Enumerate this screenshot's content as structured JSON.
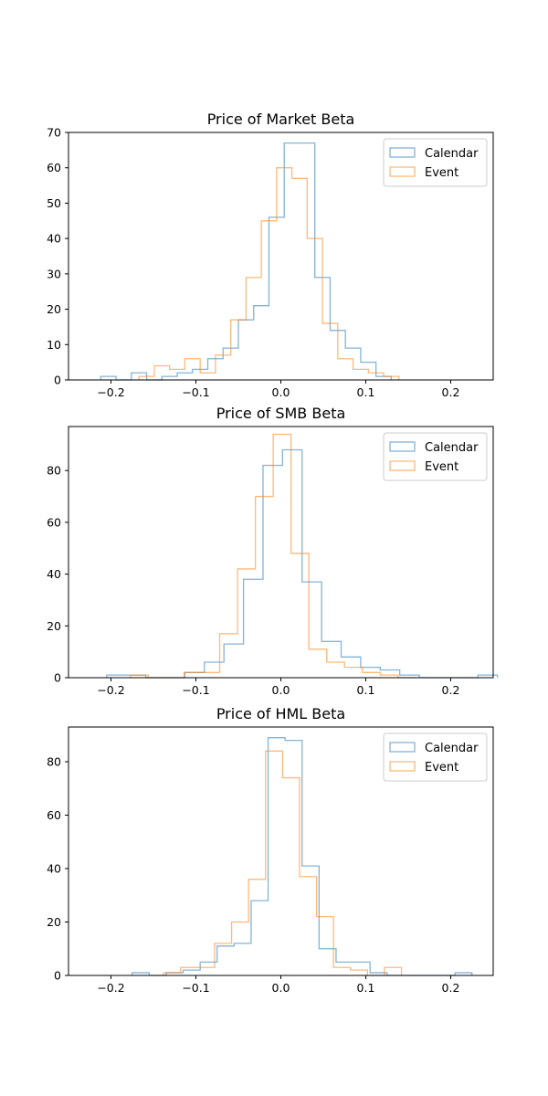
{
  "colors": {
    "calendar": "#1f77b4",
    "event": "#ff7f0e"
  },
  "chart_data": [
    {
      "type": "histogram",
      "title": "Price of Market Beta",
      "xlim": [
        -0.25,
        0.25
      ],
      "ylim": [
        0,
        70
      ],
      "xticks": [
        -0.2,
        -0.1,
        0.0,
        0.1,
        0.2
      ],
      "xtick_labels": [
        "−0.2",
        "−0.1",
        "0.0",
        "0.1",
        "0.2"
      ],
      "yticks": [
        0,
        10,
        20,
        30,
        40,
        50,
        60,
        70
      ],
      "ytick_labels": [
        "0",
        "10",
        "20",
        "30",
        "40",
        "50",
        "60",
        "70"
      ],
      "legend_position": "top-right",
      "series": [
        {
          "name": "Calendar",
          "edges": [
            -0.212,
            -0.194,
            -0.176,
            -0.158,
            -0.14,
            -0.122,
            -0.104,
            -0.086,
            -0.068,
            -0.05,
            -0.032,
            -0.014,
            0.004,
            0.022,
            0.04,
            0.058,
            0.076,
            0.094,
            0.112,
            0.13
          ],
          "counts": [
            1,
            0,
            2,
            0,
            1,
            2,
            3,
            6,
            9,
            17,
            21,
            46,
            67,
            67,
            29,
            14,
            9,
            5,
            1
          ]
        },
        {
          "name": "Event",
          "edges": [
            -0.167,
            -0.149,
            -0.131,
            -0.113,
            -0.095,
            -0.077,
            -0.059,
            -0.041,
            -0.023,
            -0.005,
            0.013,
            0.031,
            0.049,
            0.067,
            0.085,
            0.103,
            0.121,
            0.139
          ],
          "counts": [
            1,
            4,
            3,
            6,
            2,
            7,
            17,
            29,
            45,
            60,
            57,
            40,
            16,
            6,
            3,
            2,
            1
          ]
        }
      ]
    },
    {
      "type": "histogram",
      "title": "Price of SMB Beta",
      "xlim": [
        -0.25,
        0.25
      ],
      "ylim": [
        0,
        97
      ],
      "xticks": [
        -0.2,
        -0.1,
        0.0,
        0.1,
        0.2
      ],
      "xtick_labels": [
        "−0.2",
        "−0.1",
        "0.0",
        "0.1",
        "0.2"
      ],
      "yticks": [
        0,
        20,
        40,
        60,
        80
      ],
      "ytick_labels": [
        "0",
        "20",
        "40",
        "60",
        "80"
      ],
      "legend_position": "top-right",
      "series": [
        {
          "name": "Calendar",
          "edges": [
            -0.205,
            -0.182,
            -0.159,
            -0.136,
            -0.113,
            -0.09,
            -0.067,
            -0.044,
            -0.021,
            0.002,
            0.025,
            0.048,
            0.071,
            0.094,
            0.117,
            0.14,
            0.163,
            0.186,
            0.209,
            0.232,
            0.255
          ],
          "counts": [
            1,
            1,
            0,
            0,
            2,
            6,
            13,
            38,
            82,
            88,
            37,
            14,
            8,
            4,
            3,
            1,
            0,
            0,
            0,
            1
          ]
        },
        {
          "name": "Event",
          "edges": [
            -0.177,
            -0.156,
            -0.135,
            -0.114,
            -0.093,
            -0.072,
            -0.051,
            -0.03,
            -0.009,
            0.012,
            0.033,
            0.054,
            0.075,
            0.096,
            0.117,
            0.138,
            0.159
          ],
          "counts": [
            1,
            0,
            0,
            2,
            2,
            17,
            42,
            70,
            94,
            48,
            11,
            6,
            4,
            2,
            1,
            0
          ]
        }
      ]
    },
    {
      "type": "histogram",
      "title": "Price of HML Beta",
      "xlim": [
        -0.25,
        0.25
      ],
      "ylim": [
        0,
        93
      ],
      "xticks": [
        -0.2,
        -0.1,
        0.0,
        0.1,
        0.2
      ],
      "xtick_labels": [
        "−0.2",
        "−0.1",
        "0.0",
        "0.1",
        "0.2"
      ],
      "yticks": [
        0,
        20,
        40,
        60,
        80
      ],
      "ytick_labels": [
        "0",
        "20",
        "40",
        "60",
        "80"
      ],
      "legend_position": "top-right",
      "series": [
        {
          "name": "Calendar",
          "edges": [
            -0.175,
            -0.155,
            -0.135,
            -0.115,
            -0.095,
            -0.075,
            -0.055,
            -0.035,
            -0.015,
            0.005,
            0.025,
            0.045,
            0.065,
            0.085,
            0.105,
            0.125,
            0.145,
            0.165,
            0.185,
            0.205,
            0.225
          ],
          "counts": [
            1,
            0,
            1,
            2,
            5,
            11,
            12,
            28,
            89,
            88,
            41,
            10,
            5,
            5,
            1,
            0,
            0,
            0,
            0,
            1
          ]
        },
        {
          "name": "Event",
          "edges": [
            -0.138,
            -0.118,
            -0.098,
            -0.078,
            -0.058,
            -0.038,
            -0.018,
            0.002,
            0.022,
            0.042,
            0.062,
            0.082,
            0.102,
            0.122,
            0.142
          ],
          "counts": [
            1,
            3,
            3,
            12,
            20,
            36,
            84,
            74,
            37,
            22,
            3,
            2,
            0,
            3
          ]
        }
      ]
    }
  ]
}
